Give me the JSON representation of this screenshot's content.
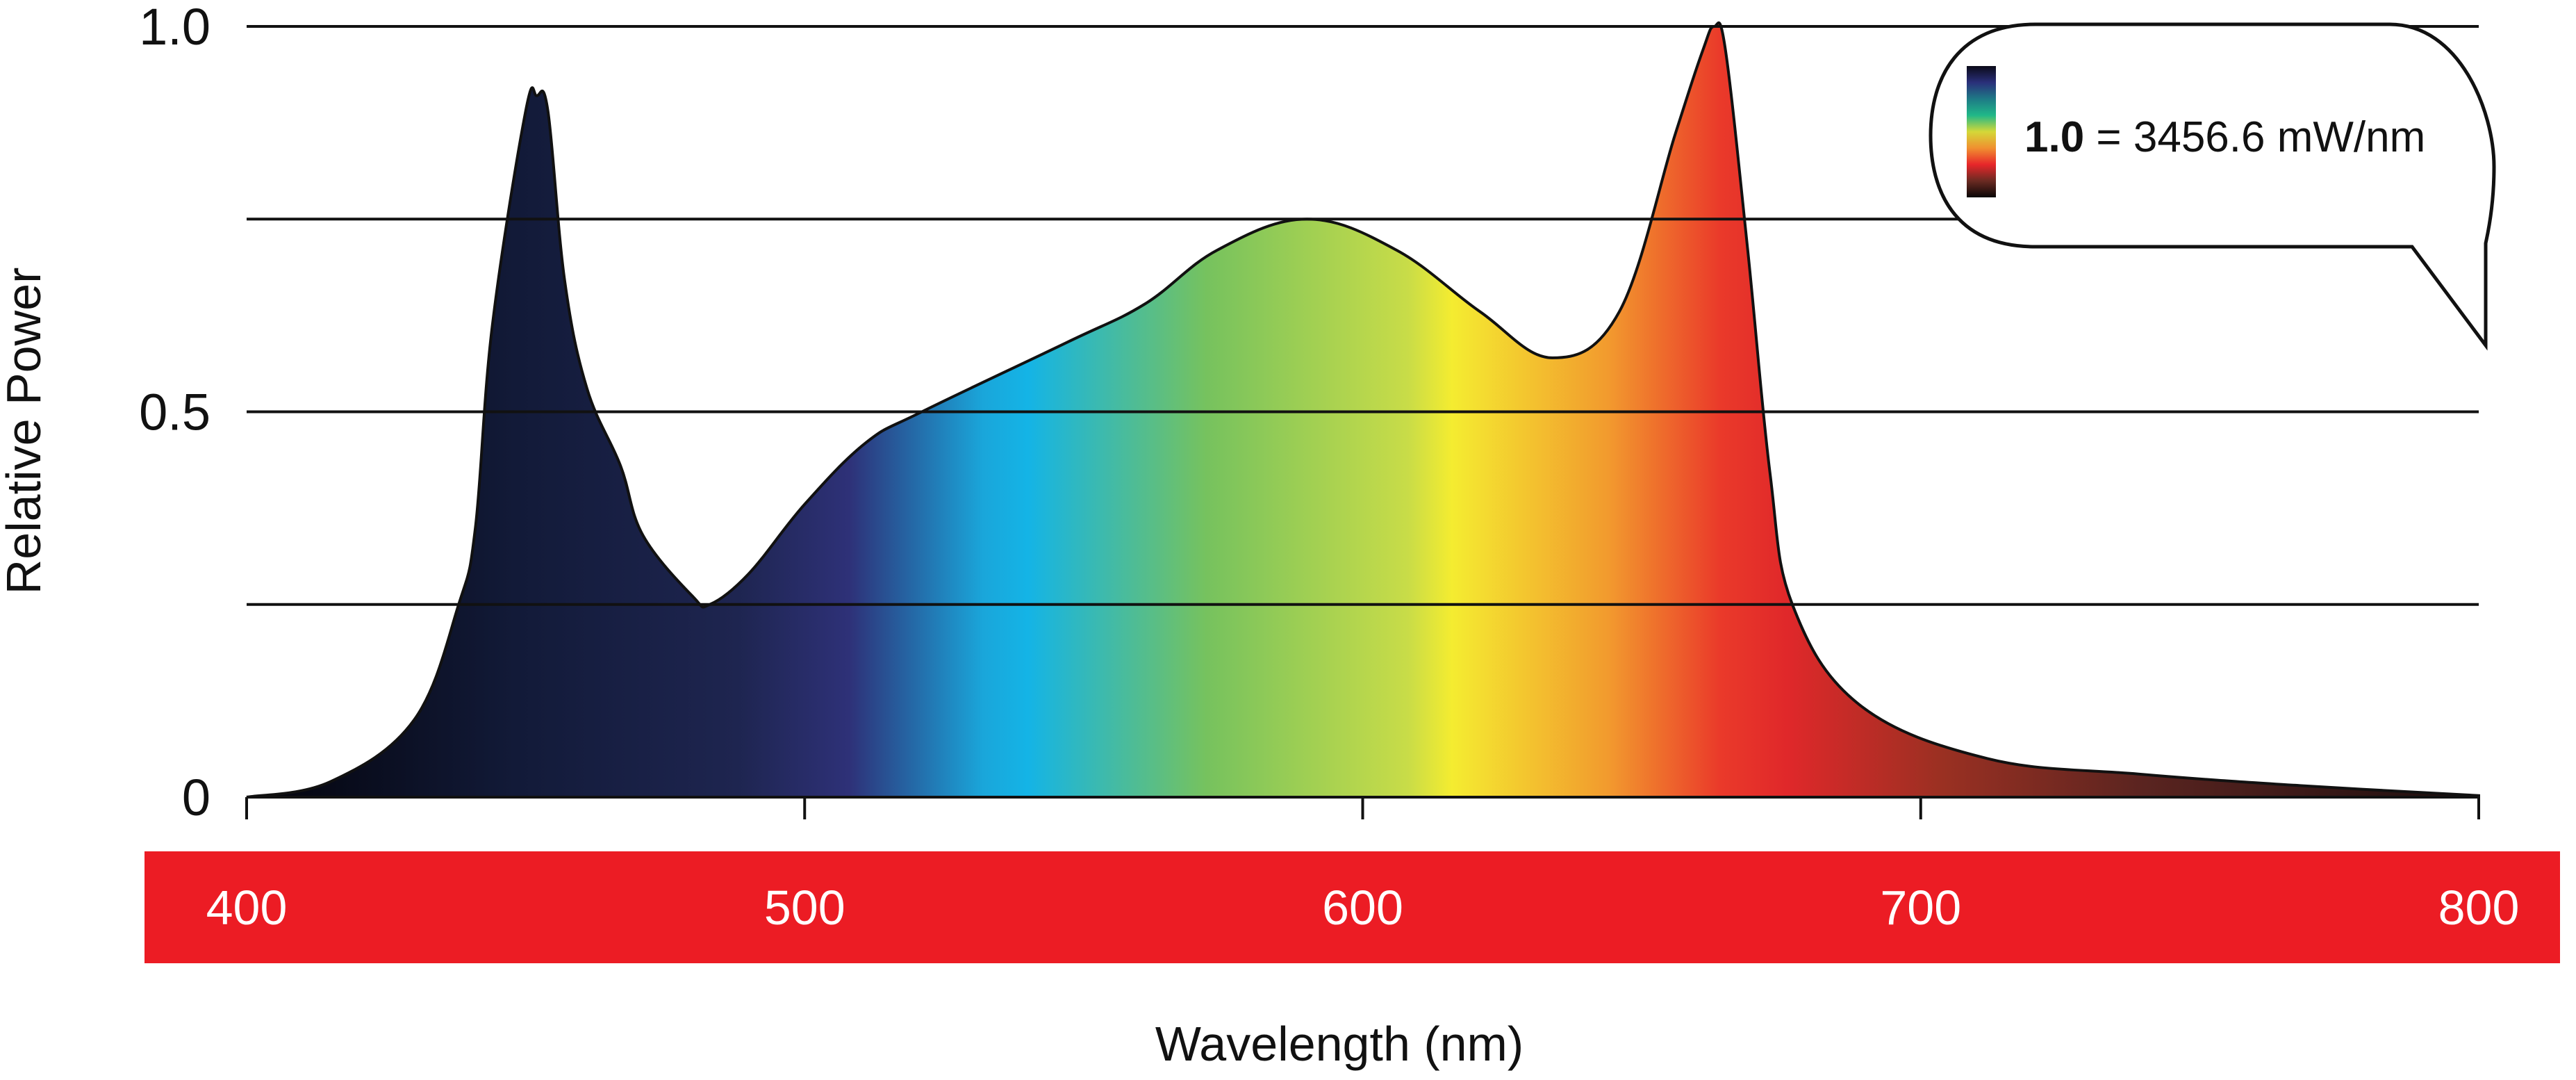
{
  "chart_data": {
    "type": "area",
    "title": "",
    "xlabel": "Wavelength (nm)",
    "ylabel": "Relative Power",
    "xlim": [
      400,
      800
    ],
    "ylim": [
      0,
      1.0
    ],
    "x_ticks": [
      "400",
      "500",
      "600",
      "700",
      "800"
    ],
    "x_tick_values": [
      400,
      500,
      600,
      700,
      800
    ],
    "y_ticks": [
      "0",
      "0.5",
      "1.0"
    ],
    "y_tick_values": [
      0,
      0.5,
      1.0
    ],
    "gridlines_y": [
      0.25,
      0.5,
      0.75,
      1.0
    ],
    "grid": true,
    "x_axis_band_color": "#ec1c24",
    "fill": "spectral gradient by wavelength",
    "series": [
      {
        "x": [
          400,
          415,
          430,
          438,
          441,
          444,
          450,
          452,
          454,
          457,
          461,
          467,
          471,
          480,
          483,
          490,
          500,
          511,
          521,
          547,
          561,
          574,
          590,
          606,
          621,
          634,
          646,
          656,
          661,
          663,
          665,
          669,
          673,
          677,
          689,
          712,
          739,
          768,
          800
        ],
        "y": [
          0,
          0.02,
          0.1,
          0.25,
          0.35,
          0.61,
          0.89,
          0.91,
          0.89,
          0.67,
          0.53,
          0.43,
          0.34,
          0.26,
          0.25,
          0.29,
          0.38,
          0.46,
          0.5,
          0.59,
          0.64,
          0.71,
          0.75,
          0.71,
          0.63,
          0.57,
          0.63,
          0.86,
          0.97,
          1.0,
          0.97,
          0.71,
          0.42,
          0.25,
          0.12,
          0.05,
          0.03,
          0.015,
          0.002
        ]
      }
    ],
    "annotation": {
      "bold": "1.0",
      "text": " = 3456.6 mW/nm",
      "legend": "color scale bar",
      "colors": [
        "#0a0a18",
        "#2a2f7a",
        "#1e7a86",
        "#20b888",
        "#d4d838",
        "#f09030",
        "#e8262a",
        "#6a2a22",
        "#0a0606"
      ]
    }
  }
}
